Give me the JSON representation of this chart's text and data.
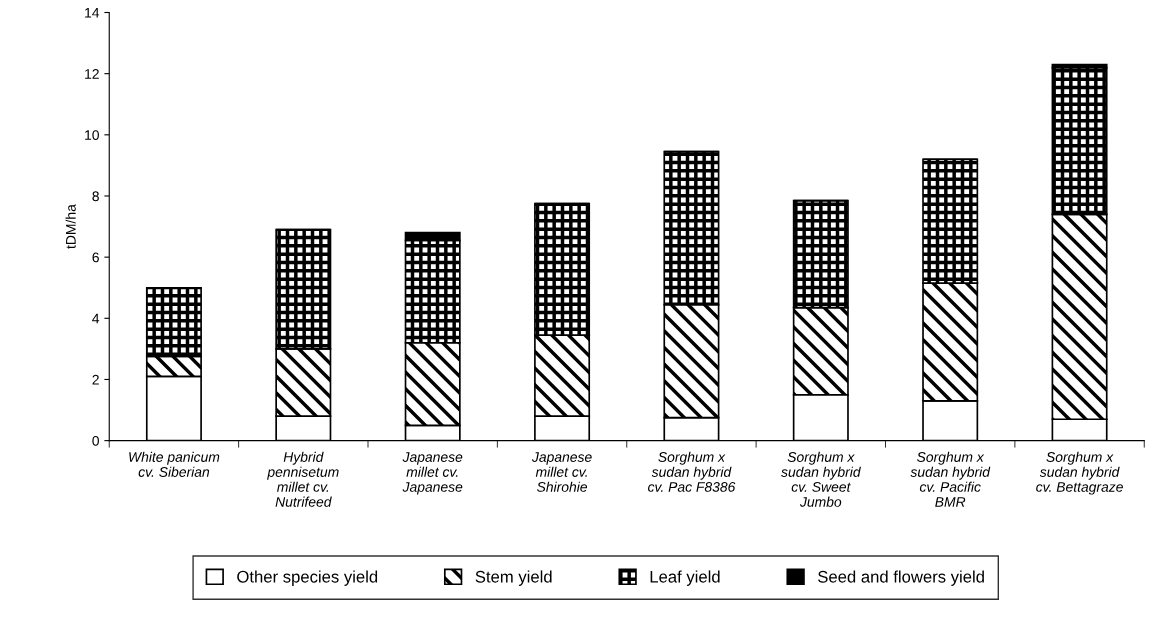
{
  "chart_data": {
    "type": "bar",
    "stacked": true,
    "ylabel": "tDM/ha",
    "categories": [
      "White panicum\ncv. Siberian",
      "Hybrid\npennisetum\nmillet cv.\nNutrifeed",
      "Japanese\nmillet cv.\nJapanese",
      "Japanese\nmillet cv.\nShirohie",
      "Sorghum x\nsudan hybrid\ncv. Pac F8386",
      "Sorghum x\nsudan hybrid\ncv. Sweet\nJumbo",
      "Sorghum x\nsudan hybrid\ncv. Pacific\nBMR",
      "Sorghum x\nsudan hybrid\ncv. Bettagraze"
    ],
    "series": [
      {
        "name": "Other species yield",
        "color": "#ffffff",
        "values": [
          2.1,
          0.8,
          0.5,
          0.8,
          0.75,
          1.5,
          1.3,
          0.7
        ]
      },
      {
        "name": "Stem yield",
        "color": "#000000",
        "values": [
          0.65,
          2.2,
          2.7,
          2.65,
          3.7,
          2.85,
          3.85,
          6.7
        ]
      },
      {
        "name": "Leaf yield",
        "color": "#000000",
        "values": [
          2.25,
          3.9,
          3.35,
          4.3,
          5.0,
          3.5,
          4.05,
          4.8
        ]
      },
      {
        "name": "Seed and flowers yield",
        "color": "#000000",
        "values": [
          0,
          0,
          0.25,
          0,
          0,
          0,
          0,
          0.1
        ]
      }
    ],
    "ylim": [
      0,
      14
    ],
    "yticks": [
      0,
      2,
      4,
      6,
      8,
      10,
      12,
      14
    ],
    "grid": false,
    "legend": "bottom"
  }
}
